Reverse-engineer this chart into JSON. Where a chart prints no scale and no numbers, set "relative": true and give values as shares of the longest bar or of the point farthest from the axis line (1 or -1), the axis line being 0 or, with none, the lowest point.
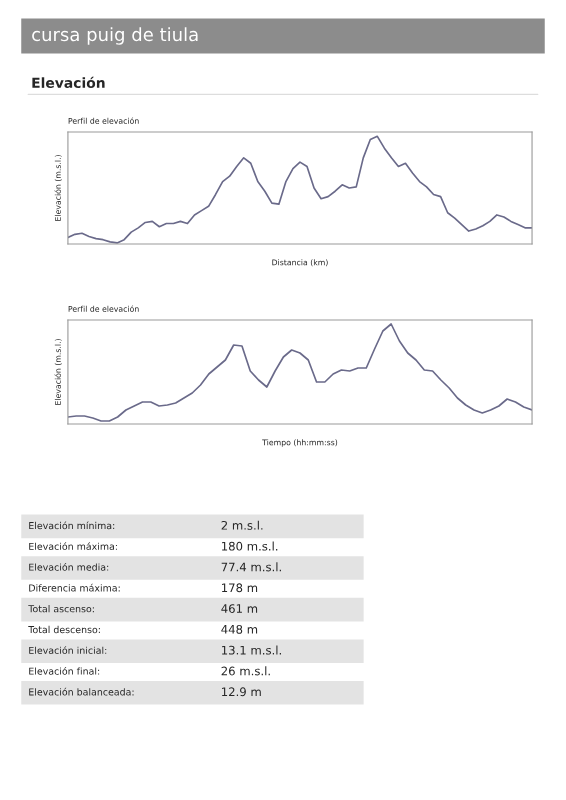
{
  "chart_data": [
    {
      "type": "other",
      "title": "cursa puig de tiula",
      "subtitle": "Elevación"
    },
    {
      "type": "line",
      "title": "Perfil de elevación",
      "xlabel": "Distancia (km)",
      "ylabel": "Elevación (m.s.l.)",
      "relative": true,
      "color": "#6a6a8a",
      "categories": [
        null,
        null,
        null,
        null,
        null,
        null,
        null,
        null,
        null,
        null,
        null,
        null,
        null,
        null,
        null,
        null,
        null,
        null,
        null,
        null,
        null,
        null,
        null,
        null,
        null,
        null,
        null,
        null,
        null,
        null,
        null,
        null,
        null,
        null,
        null,
        null,
        null,
        null,
        null,
        null,
        null,
        null,
        null,
        null,
        null,
        null,
        null,
        null,
        null,
        null,
        null,
        null,
        null,
        null,
        null,
        null,
        null,
        null,
        null,
        null,
        null,
        null,
        null,
        null,
        null,
        null,
        null
      ],
      "values": [
        0.06,
        0.09,
        0.1,
        0.07,
        0.05,
        0.04,
        0.02,
        0.01,
        0.04,
        0.11,
        0.15,
        0.2,
        0.21,
        0.16,
        0.19,
        0.19,
        0.21,
        0.19,
        0.27,
        0.31,
        0.35,
        0.46,
        0.58,
        0.63,
        0.72,
        0.8,
        0.75,
        0.58,
        0.49,
        0.38,
        0.37,
        0.58,
        0.7,
        0.76,
        0.72,
        0.52,
        0.42,
        0.44,
        0.49,
        0.55,
        0.52,
        0.53,
        0.8,
        0.97,
        1.0,
        0.89,
        0.8,
        0.72,
        0.75,
        0.66,
        0.58,
        0.53,
        0.46,
        0.44,
        0.29,
        0.24,
        0.18,
        0.12,
        0.14,
        0.17,
        0.21,
        0.27,
        0.25,
        0.21,
        0.18,
        0.15,
        0.15
      ]
    },
    {
      "type": "line",
      "title": "Perfil de elevación",
      "xlabel": "Tiempo (hh:mm:ss)",
      "ylabel": "Elevación (m.s.l.)",
      "relative": true,
      "color": "#6a6a8a",
      "categories": [
        null,
        null,
        null,
        null,
        null,
        null,
        null,
        null,
        null,
        null,
        null,
        null,
        null,
        null,
        null,
        null,
        null,
        null,
        null,
        null,
        null,
        null,
        null,
        null,
        null,
        null,
        null,
        null,
        null,
        null,
        null,
        null,
        null,
        null,
        null,
        null,
        null,
        null,
        null,
        null,
        null,
        null,
        null,
        null,
        null,
        null,
        null,
        null,
        null,
        null,
        null,
        null,
        null,
        null,
        null,
        null,
        null
      ],
      "values": [
        0.07,
        0.08,
        0.08,
        0.06,
        0.03,
        0.03,
        0.07,
        0.14,
        0.18,
        0.22,
        0.22,
        0.18,
        0.19,
        0.21,
        0.26,
        0.31,
        0.39,
        0.5,
        0.57,
        0.64,
        0.79,
        0.78,
        0.53,
        0.44,
        0.37,
        0.53,
        0.67,
        0.74,
        0.71,
        0.64,
        0.42,
        0.42,
        0.5,
        0.54,
        0.53,
        0.56,
        0.56,
        0.75,
        0.93,
        1.0,
        0.83,
        0.71,
        0.64,
        0.54,
        0.53,
        0.44,
        0.36,
        0.26,
        0.19,
        0.14,
        0.11,
        0.14,
        0.18,
        0.25,
        0.22,
        0.17,
        0.14
      ]
    },
    {
      "type": "other",
      "annotations": [
        "Elevación mínima:",
        "2 m.s.l.",
        "Elevación máxima:",
        "180 m.s.l.",
        "Elevación media:",
        "77.4 m.s.l.",
        "Diferencia máxima:",
        "178 m",
        "Total ascenso:",
        "461 m",
        "Total descenso:",
        "448 m",
        "Elevación inicial:",
        "13.1 m.s.l.",
        "Elevación final:",
        "26 m.s.l.",
        "Elevación balanceada:",
        "12.9 m"
      ]
    }
  ]
}
